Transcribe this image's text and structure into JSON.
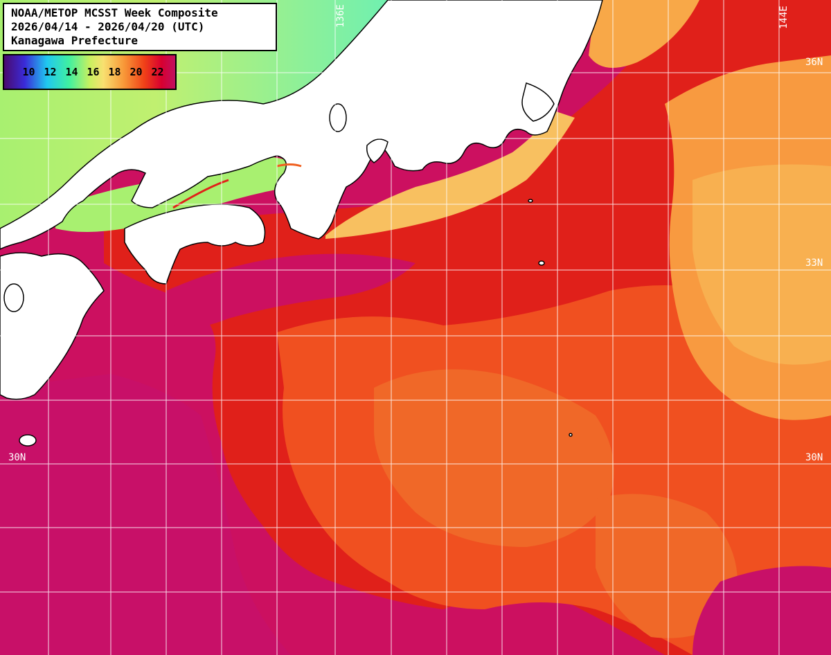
{
  "title": {
    "line1": "NOAA/METOP MCSST Week Composite",
    "line2": "2026/04/14 - 2026/04/20 (UTC)",
    "line3": "Kanagawa Prefecture"
  },
  "legend": {
    "values": [
      "10",
      "12",
      "14",
      "16",
      "18",
      "20",
      "22"
    ],
    "unit_colors": [
      "#4a0a6e",
      "#3a2bd8",
      "#20c8f0",
      "#40f0a0",
      "#c8f060",
      "#f8e070",
      "#f89838",
      "#f04018",
      "#d80030",
      "#c01060"
    ]
  },
  "grid_labels": {
    "lat_36_right": "36N",
    "lat_33_right": "33N",
    "lat_30_left": "30N",
    "lat_30_right": "30N",
    "lon_136_top": "136E",
    "lon_144_top": "144E"
  },
  "colors": {
    "land": "#ffffff",
    "grid": "#ffffff",
    "coast": "#000000",
    "warm_sea": "#cc1060",
    "red_sea": "#e02018",
    "orange_sea": "#f06020",
    "light_orange": "#f8a040",
    "cool_sea": "#a8f070"
  }
}
